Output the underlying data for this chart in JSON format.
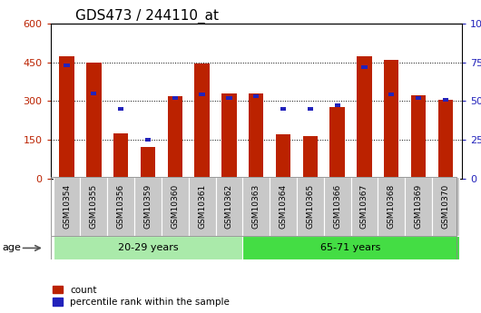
{
  "title": "GDS473 / 244110_at",
  "samples": [
    "GSM10354",
    "GSM10355",
    "GSM10356",
    "GSM10359",
    "GSM10360",
    "GSM10361",
    "GSM10362",
    "GSM10363",
    "GSM10364",
    "GSM10365",
    "GSM10366",
    "GSM10367",
    "GSM10368",
    "GSM10369",
    "GSM10370"
  ],
  "counts": [
    472,
    450,
    175,
    120,
    320,
    445,
    330,
    330,
    172,
    163,
    278,
    473,
    460,
    323,
    305
  ],
  "percentiles": [
    73,
    55,
    45,
    25,
    52,
    54,
    52,
    53,
    45,
    45,
    47,
    72,
    54,
    52,
    51
  ],
  "groups": [
    {
      "label": "20-29 years",
      "start": 0,
      "end": 7,
      "color": "#aaeaaa"
    },
    {
      "label": "65-71 years",
      "start": 7,
      "end": 15,
      "color": "#44dd44"
    }
  ],
  "bar_color": "#BB2200",
  "blue_color": "#2222BB",
  "tick_bg_color": "#C8C8C8",
  "ylim_left": [
    0,
    600
  ],
  "ylim_right": [
    0,
    100
  ],
  "yticks_left": [
    0,
    150,
    300,
    450,
    600
  ],
  "yticks_right": [
    0,
    25,
    50,
    75,
    100
  ],
  "legend_count_label": "count",
  "legend_pct_label": "percentile rank within the sample",
  "age_label": "age",
  "bar_width": 0.55,
  "title_fontsize": 11,
  "axis_fontsize": 8,
  "label_fontsize": 6.5
}
